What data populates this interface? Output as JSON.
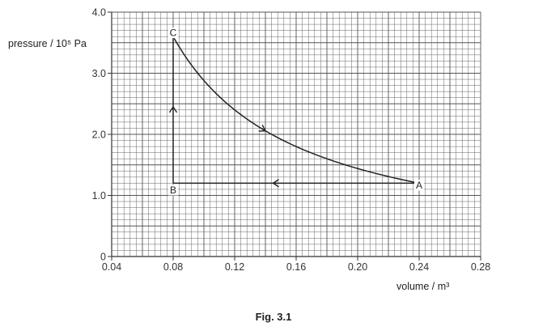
{
  "figure": {
    "caption": "Fig. 3.1"
  },
  "chart_data": {
    "type": "line",
    "xlabel": "volume / m³",
    "ylabel": "pressure / 10⁵ Pa",
    "xlim": [
      0.04,
      0.28
    ],
    "ylim": [
      0,
      4.0
    ],
    "x_ticks": [
      0.04,
      0.08,
      0.12,
      0.16,
      0.2,
      0.24,
      0.28
    ],
    "x_tick_labels": [
      "0.04",
      "0.08",
      "0.12",
      "0.16",
      "0.20",
      "0.24",
      "0.28"
    ],
    "y_ticks": [
      0,
      1.0,
      2.0,
      3.0,
      4.0
    ],
    "y_tick_labels": [
      "0",
      "1.0",
      "2.0",
      "3.0",
      "4.0"
    ],
    "grid": true,
    "grid_minor_x": 0.004,
    "grid_minor_y": 0.1,
    "points": [
      {
        "label": "A",
        "x": 0.24,
        "y": 1.2
      },
      {
        "label": "B",
        "x": 0.08,
        "y": 1.2
      },
      {
        "label": "C",
        "x": 0.08,
        "y": 3.6
      }
    ],
    "segments": [
      {
        "from": "A",
        "to": "B",
        "shape": "straight",
        "arrow_at": [
          0.145,
          1.2
        ]
      },
      {
        "from": "B",
        "to": "C",
        "shape": "straight",
        "arrow_at": [
          0.08,
          2.45
        ]
      },
      {
        "from": "C",
        "to": "A",
        "shape": "curve",
        "arrow_at": [
          0.14,
          2.06
        ]
      }
    ],
    "colors": {
      "line": "#222222",
      "grid": "#555555",
      "axis": "#333333"
    }
  }
}
